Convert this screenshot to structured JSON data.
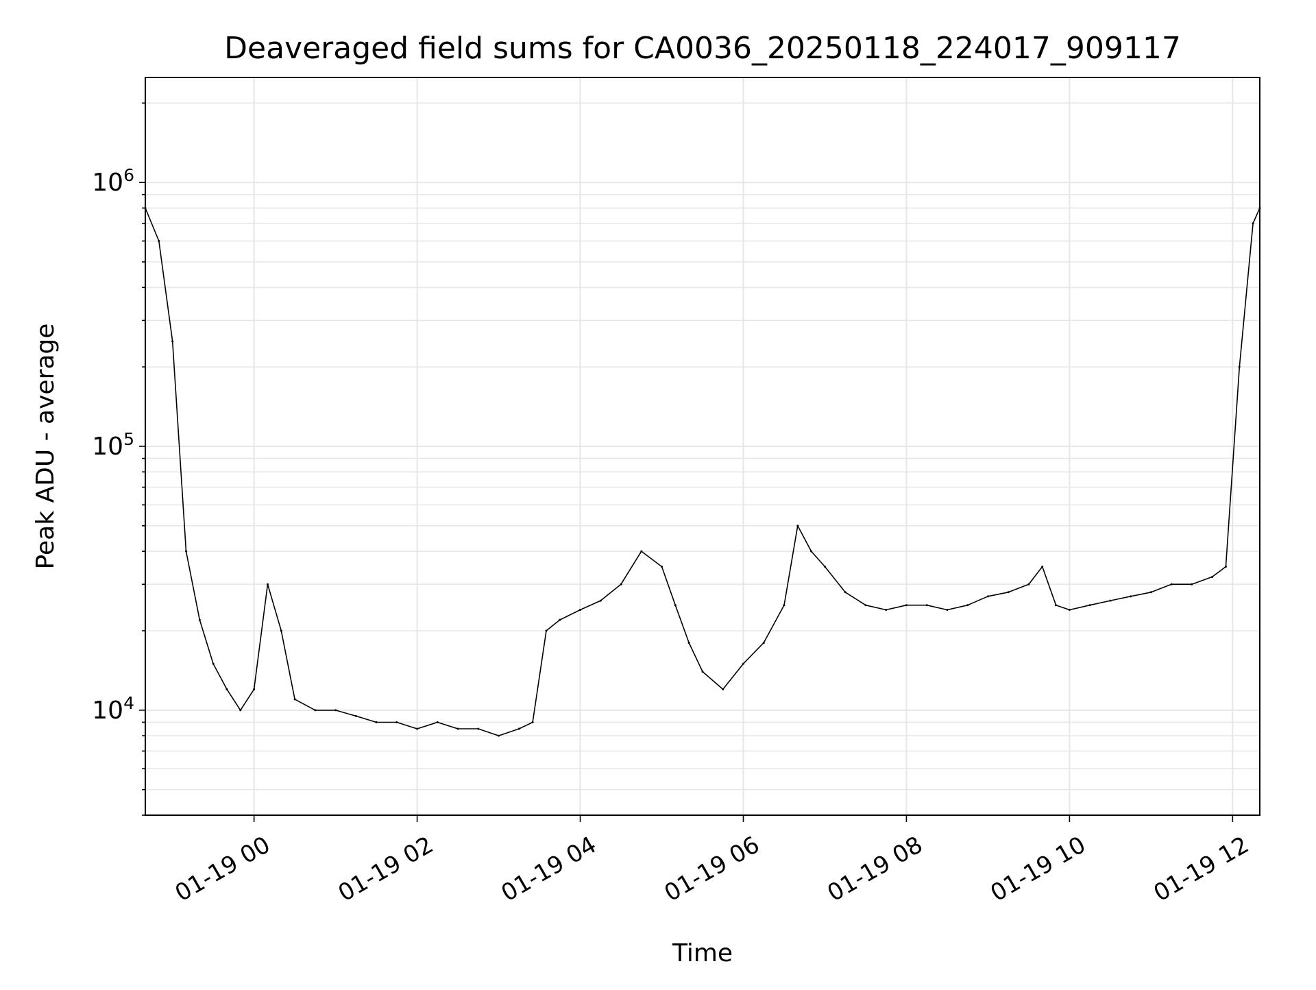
{
  "chart_data": {
    "type": "line",
    "title": "Deaveraged field sums for CA0036_20250118_224017_909117",
    "xlabel": "Time",
    "ylabel": "Peak ADU - average",
    "yscale": "log",
    "ylim": [
      4000,
      2500000
    ],
    "xlim": [
      "2025-01-18 22:40",
      "2025-01-19 12:20"
    ],
    "grid": true,
    "line_color": "#000000",
    "x_ticks": [
      {
        "value": "2025-01-19 00:00",
        "label": "01-19 00"
      },
      {
        "value": "2025-01-19 02:00",
        "label": "01-19 02"
      },
      {
        "value": "2025-01-19 04:00",
        "label": "01-19 04"
      },
      {
        "value": "2025-01-19 06:00",
        "label": "01-19 06"
      },
      {
        "value": "2025-01-19 08:00",
        "label": "01-19 08"
      },
      {
        "value": "2025-01-19 10:00",
        "label": "01-19 10"
      },
      {
        "value": "2025-01-19 12:00",
        "label": "01-19 12"
      }
    ],
    "y_ticks": [
      {
        "value": 10000,
        "base": "10",
        "exp": "4"
      },
      {
        "value": 100000,
        "base": "10",
        "exp": "5"
      },
      {
        "value": 1000000,
        "base": "10",
        "exp": "6"
      }
    ],
    "series": [
      {
        "x": [
          "2025-01-18 22:40",
          "2025-01-18 22:50",
          "2025-01-18 23:00",
          "2025-01-18 23:10",
          "2025-01-18 23:20",
          "2025-01-18 23:30",
          "2025-01-18 23:40",
          "2025-01-18 23:50",
          "2025-01-19 00:00",
          "2025-01-19 00:10",
          "2025-01-19 00:20",
          "2025-01-19 00:30",
          "2025-01-19 00:45",
          "2025-01-19 01:00",
          "2025-01-19 01:15",
          "2025-01-19 01:30",
          "2025-01-19 01:45",
          "2025-01-19 02:00",
          "2025-01-19 02:15",
          "2025-01-19 02:30",
          "2025-01-19 02:45",
          "2025-01-19 03:00",
          "2025-01-19 03:15",
          "2025-01-19 03:25",
          "2025-01-19 03:35",
          "2025-01-19 03:45",
          "2025-01-19 04:00",
          "2025-01-19 04:15",
          "2025-01-19 04:30",
          "2025-01-19 04:45",
          "2025-01-19 05:00",
          "2025-01-19 05:10",
          "2025-01-19 05:20",
          "2025-01-19 05:30",
          "2025-01-19 05:45",
          "2025-01-19 06:00",
          "2025-01-19 06:15",
          "2025-01-19 06:30",
          "2025-01-19 06:40",
          "2025-01-19 06:50",
          "2025-01-19 07:00",
          "2025-01-19 07:15",
          "2025-01-19 07:30",
          "2025-01-19 07:45",
          "2025-01-19 08:00",
          "2025-01-19 08:15",
          "2025-01-19 08:30",
          "2025-01-19 08:45",
          "2025-01-19 09:00",
          "2025-01-19 09:15",
          "2025-01-19 09:30",
          "2025-01-19 09:40",
          "2025-01-19 09:50",
          "2025-01-19 10:00",
          "2025-01-19 10:15",
          "2025-01-19 10:30",
          "2025-01-19 10:45",
          "2025-01-19 11:00",
          "2025-01-19 11:15",
          "2025-01-19 11:30",
          "2025-01-19 11:45",
          "2025-01-19 11:55",
          "2025-01-19 12:05",
          "2025-01-19 12:15",
          "2025-01-19 12:20"
        ],
        "y": [
          800000,
          600000,
          250000,
          40000,
          22000,
          15000,
          12000,
          10000,
          12000,
          30000,
          20000,
          11000,
          10000,
          10000,
          9500,
          9000,
          9000,
          8500,
          9000,
          8500,
          8500,
          8000,
          8500,
          9000,
          20000,
          22000,
          24000,
          26000,
          30000,
          40000,
          35000,
          25000,
          18000,
          14000,
          12000,
          15000,
          18000,
          25000,
          50000,
          40000,
          35000,
          28000,
          25000,
          24000,
          25000,
          25000,
          24000,
          25000,
          27000,
          28000,
          30000,
          35000,
          25000,
          24000,
          25000,
          26000,
          27000,
          28000,
          30000,
          30000,
          32000,
          35000,
          200000,
          700000,
          800000
        ]
      }
    ]
  }
}
